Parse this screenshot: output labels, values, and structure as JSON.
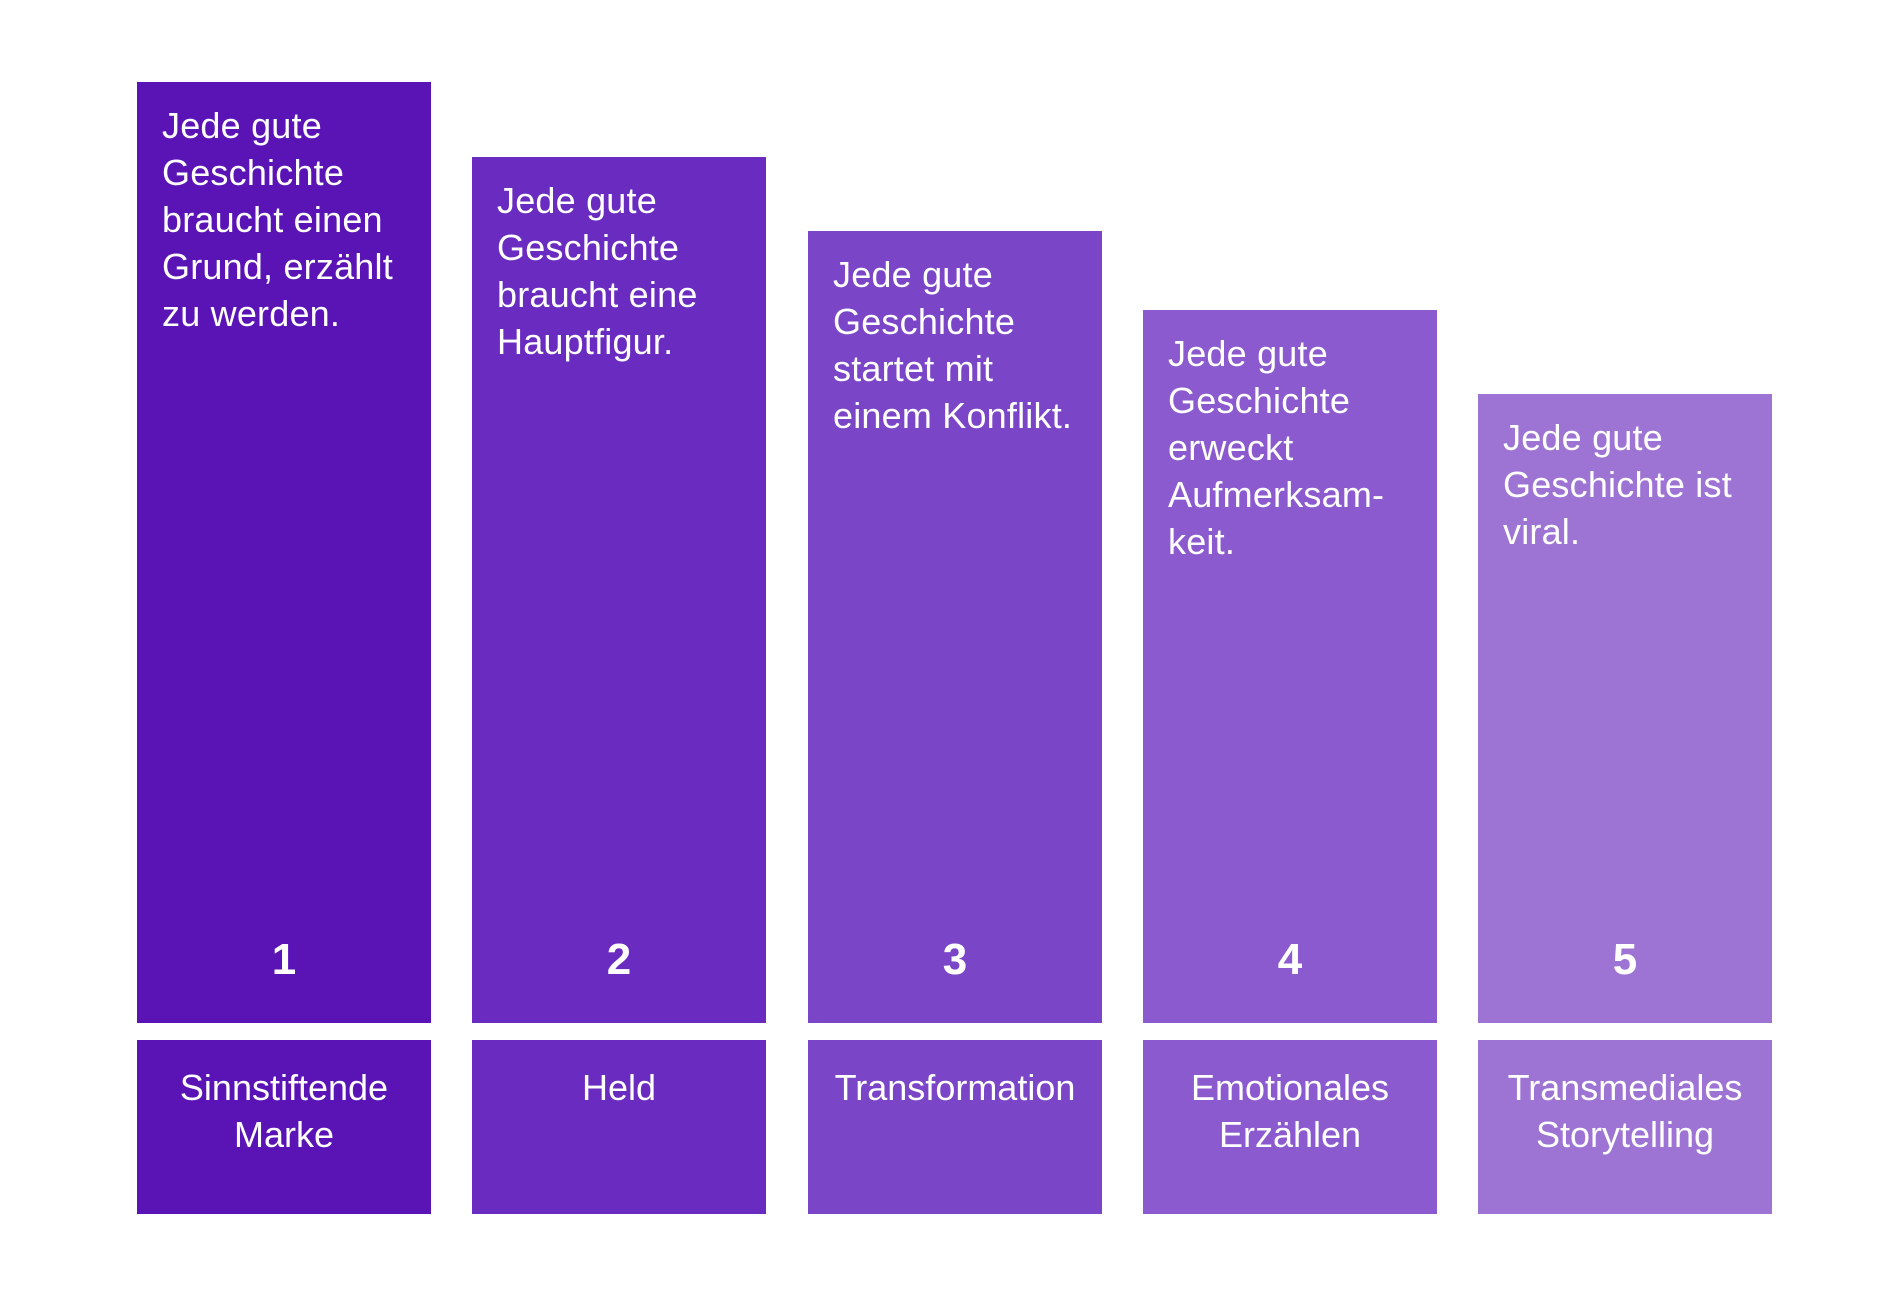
{
  "steps": [
    {
      "number": "1",
      "statement": "Jede gute Geschichte braucht einen Grund, erzählt zu werden.",
      "label": "Sinnstiftende\nMarke",
      "color": "#5A14B6"
    },
    {
      "number": "2",
      "statement": "Jede gute Geschichte braucht eine Hauptfigur.",
      "label": "Held",
      "color": "#6A2CC0"
    },
    {
      "number": "3",
      "statement": "Jede gute Geschichte startet mit einem Konflikt.",
      "label": "Transformation",
      "color": "#7B45C8"
    },
    {
      "number": "4",
      "statement": "Jede gute Geschichte erweckt Aufmerksam-keit.",
      "label": "Emotionales\nErzählen",
      "color": "#8C5ACF"
    },
    {
      "number": "5",
      "statement": "Jede gute Geschichte ist viral.",
      "label": "Transmediales\nStorytelling",
      "color": "#9D74D4"
    }
  ]
}
